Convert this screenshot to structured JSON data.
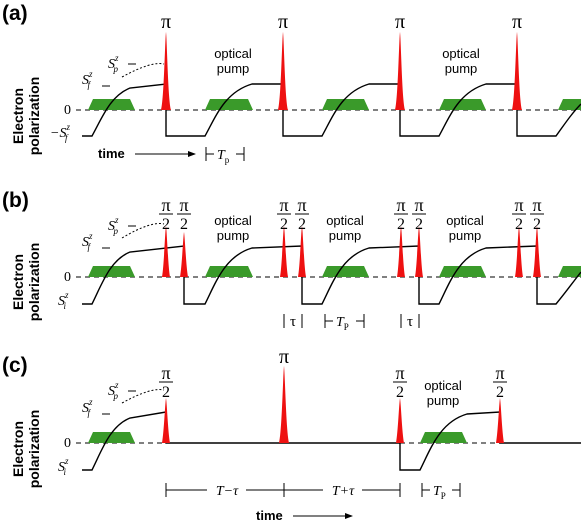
{
  "panels": [
    {
      "tag": "(a)",
      "ylabel_line1": "Electron",
      "ylabel_line2": "polarization",
      "zero": "0",
      "sp_label": "S",
      "sp_sup": "z",
      "sp_sub": "p",
      "sf_label": "S",
      "sf_sup": "z",
      "sf_sub": "f",
      "low_label": "−S",
      "low_sup": "z",
      "low_sub": "f",
      "pulse_pi": "π",
      "pump_line1": "optical",
      "pump_line2": "pump",
      "time_label": "time",
      "tp_T": "T",
      "tp_sub": "p"
    },
    {
      "tag": "(b)",
      "ylabel_line1": "Electron",
      "ylabel_line2": "polarization",
      "zero": "0",
      "sp_label": "S",
      "sp_sup": "z",
      "sp_sub": "p",
      "sf_label": "S",
      "sf_sup": "z",
      "sf_sub": "f",
      "low_label": "S",
      "low_sup": "z",
      "low_sub": "i",
      "frac_num": "π",
      "frac_den": "2",
      "pump_line1": "optical",
      "pump_line2": "pump",
      "tau": "τ",
      "tp_T": "T",
      "tp_sub": "P"
    },
    {
      "tag": "(c)",
      "ylabel_line1": "Electron",
      "ylabel_line2": "polarization",
      "zero": "0",
      "sp_label": "S",
      "sp_sup": "z",
      "sp_sub": "p",
      "sf_label": "S",
      "sf_sup": "z",
      "sf_sub": "f",
      "low_label": "S",
      "low_sup": "z",
      "low_sub": "i",
      "frac_num": "π",
      "frac_den": "2",
      "pulse_pi": "π",
      "pump_line1": "optical",
      "pump_line2": "pump",
      "t_minus": "T−τ",
      "t_plus": "T+τ",
      "tp_T": "T",
      "tp_sub": "P",
      "time_label": "time"
    }
  ],
  "colors": {
    "pulse": "#ee1111",
    "pump": "#3a9a2a",
    "trace": "#000000",
    "dashed": "#000000"
  }
}
